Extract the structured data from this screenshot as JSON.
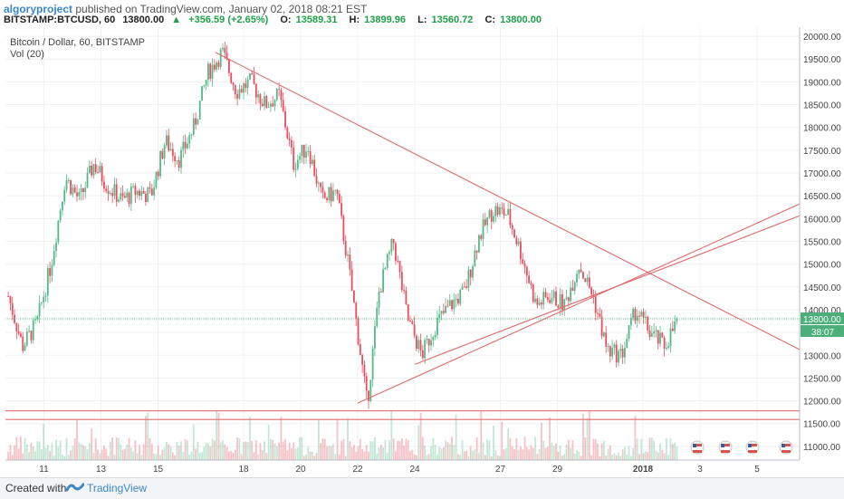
{
  "header": {
    "author": "algoryproject",
    "published_text": "published on TradingView.com, January 02, 2018 08:21 EST",
    "symbol": "BITSTAMP:BTCUSD, 60",
    "last": "13800.00",
    "change": "+356.59 (+2.65%)",
    "open_label": "O:",
    "open": "13589.31",
    "high_label": "H:",
    "high": "13899.96",
    "low_label": "L:",
    "low": "13560.72",
    "close_label": "C:",
    "close": "13800.00"
  },
  "legend": {
    "title": "Bitcoin / Dollar, 60, BITSTAMP",
    "volume": "Vol (20)"
  },
  "price_axis": {
    "ticks": [
      "20000.00",
      "19500.00",
      "19000.00",
      "18500.00",
      "18000.00",
      "17500.00",
      "17000.00",
      "16500.00",
      "16000.00",
      "15500.00",
      "15000.00",
      "14500.00",
      "14000.00",
      "13500.00",
      "13000.00",
      "12500.00",
      "12000.00",
      "11500.00",
      "11000.00"
    ],
    "last_price_tag": "13800.00",
    "countdown_tag": "38:07"
  },
  "time_axis": {
    "ticks": [
      "11",
      "13",
      "15",
      "18",
      "20",
      "22",
      "24",
      "27",
      "29",
      "2018",
      "3",
      "5"
    ]
  },
  "footer": {
    "created_with": "Created with",
    "brand": "TradingView"
  },
  "colors": {
    "up": "#53b987",
    "down": "#eb4d5c",
    "trendline": "#e06b6b",
    "last_price": "#4caf7a",
    "accent": "#3a87c8"
  },
  "chart_data": {
    "type": "candlestick",
    "symbol": "BITSTAMP:BTCUSD",
    "interval": "60",
    "ylim": [
      10700,
      20200
    ],
    "y_ticks": [
      20000,
      19500,
      19000,
      18500,
      18000,
      17500,
      17000,
      16500,
      16000,
      15500,
      15000,
      14500,
      14000,
      13500,
      13000,
      12500,
      12000,
      11500,
      11000
    ],
    "x_ticks": [
      "11",
      "13",
      "15",
      "18",
      "20",
      "22",
      "24",
      "27",
      "29",
      "2018",
      "3",
      "5"
    ],
    "price_path": [
      {
        "date": "Dec 10",
        "price": 14300
      },
      {
        "date": "Dec 10",
        "price": 13200
      },
      {
        "date": "Dec 11",
        "price": 13700
      },
      {
        "date": "Dec 11",
        "price": 15000
      },
      {
        "date": "Dec 12",
        "price": 16900
      },
      {
        "date": "Dec 12",
        "price": 16400
      },
      {
        "date": "Dec 13",
        "price": 17200
      },
      {
        "date": "Dec 13",
        "price": 16700
      },
      {
        "date": "Dec 14",
        "price": 16400
      },
      {
        "date": "Dec 14",
        "price": 16600
      },
      {
        "date": "Dec 15",
        "price": 16500
      },
      {
        "date": "Dec 15",
        "price": 17700
      },
      {
        "date": "Dec 16",
        "price": 17300
      },
      {
        "date": "Dec 16",
        "price": 18000
      },
      {
        "date": "Dec 17",
        "price": 19200
      },
      {
        "date": "Dec 17",
        "price": 19650
      },
      {
        "date": "Dec 18",
        "price": 18800
      },
      {
        "date": "Dec 18",
        "price": 19000
      },
      {
        "date": "Dec 19",
        "price": 18500
      },
      {
        "date": "Dec 19",
        "price": 18700
      },
      {
        "date": "Dec 20",
        "price": 17200
      },
      {
        "date": "Dec 20",
        "price": 17600
      },
      {
        "date": "Dec 21",
        "price": 16400
      },
      {
        "date": "Dec 21",
        "price": 16600
      },
      {
        "date": "Dec 22",
        "price": 15000
      },
      {
        "date": "Dec 22",
        "price": 13500
      },
      {
        "date": "Dec 22",
        "price": 11900
      },
      {
        "date": "Dec 23",
        "price": 14400
      },
      {
        "date": "Dec 23",
        "price": 15500
      },
      {
        "date": "Dec 24",
        "price": 13800
      },
      {
        "date": "Dec 24",
        "price": 13000
      },
      {
        "date": "Dec 25",
        "price": 13700
      },
      {
        "date": "Dec 25",
        "price": 14100
      },
      {
        "date": "Dec 26",
        "price": 14400
      },
      {
        "date": "Dec 26",
        "price": 15600
      },
      {
        "date": "Dec 27",
        "price": 16200
      },
      {
        "date": "Dec 27",
        "price": 16100
      },
      {
        "date": "Dec 28",
        "price": 15200
      },
      {
        "date": "Dec 28",
        "price": 14100
      },
      {
        "date": "Dec 29",
        "price": 14300
      },
      {
        "date": "Dec 29",
        "price": 14100
      },
      {
        "date": "Dec 30",
        "price": 15000
      },
      {
        "date": "Dec 30",
        "price": 14300
      },
      {
        "date": "Dec 31",
        "price": 13100
      },
      {
        "date": "Dec 31",
        "price": 13000
      },
      {
        "date": "Jan 1",
        "price": 14000
      },
      {
        "date": "Jan 1",
        "price": 13500
      },
      {
        "date": "Jan 2",
        "price": 13200
      },
      {
        "date": "Jan 2",
        "price": 13800
      }
    ],
    "last_price": 13800,
    "trendlines": [
      {
        "name": "Descending resistance",
        "from": {
          "date": "Dec 17",
          "price": 19650
        },
        "to": {
          "date": "Jan 5",
          "price": 13600
        }
      },
      {
        "name": "Ascending support (lower)",
        "from": {
          "date": "Dec 22",
          "price": 11950
        },
        "to": {
          "date": "Jan 5",
          "price": 15900
        }
      },
      {
        "name": "Ascending support (upper)",
        "from": {
          "date": "Dec 24",
          "price": 12800
        },
        "to": {
          "date": "Jan 5",
          "price": 15700
        }
      },
      {
        "name": "Horizontal support",
        "from": {
          "date": "Dec 10",
          "price": 11780
        },
        "to": {
          "date": "Jan 5",
          "price": 11780
        }
      },
      {
        "name": "Horizontal support",
        "from": {
          "date": "Dec 10",
          "price": 11590
        },
        "to": {
          "date": "Jan 5",
          "price": 11590
        }
      }
    ],
    "grid": true
  }
}
